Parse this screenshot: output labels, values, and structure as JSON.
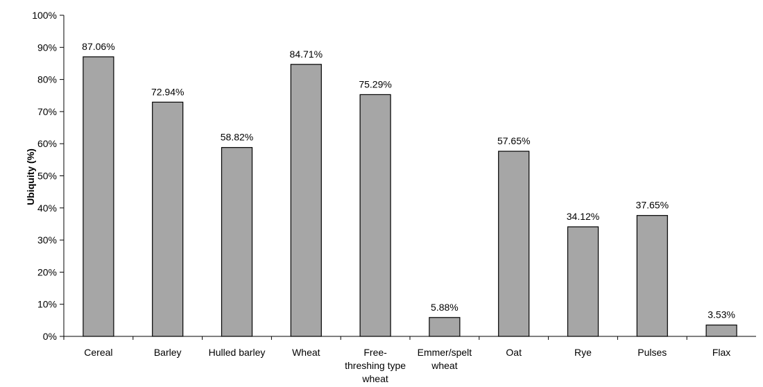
{
  "chart_data": {
    "type": "bar",
    "title": "",
    "xlabel": "",
    "ylabel": "Ubiquity (%)",
    "ylim": [
      0,
      100
    ],
    "yticks": [
      "0%",
      "10%",
      "20%",
      "30%",
      "40%",
      "50%",
      "60%",
      "70%",
      "80%",
      "90%",
      "100%"
    ],
    "categories": [
      [
        "Cereal"
      ],
      [
        "Barley"
      ],
      [
        "Hulled barley"
      ],
      [
        "Wheat"
      ],
      [
        "Free-",
        "threshing type",
        "wheat"
      ],
      [
        "Emmer/spelt",
        "wheat"
      ],
      [
        "Oat"
      ],
      [
        "Rye"
      ],
      [
        "Pulses"
      ],
      [
        "Flax"
      ]
    ],
    "values": [
      87.06,
      72.94,
      58.82,
      84.71,
      75.29,
      5.88,
      57.65,
      34.12,
      37.65,
      3.53
    ],
    "value_labels": [
      "87.06%",
      "72.94%",
      "58.82%",
      "84.71%",
      "75.29%",
      "5.88%",
      "57.65%",
      "34.12%",
      "37.65%",
      "3.53%"
    ],
    "bar_color": "#a6a6a6",
    "grid": false,
    "legend": "none"
  }
}
